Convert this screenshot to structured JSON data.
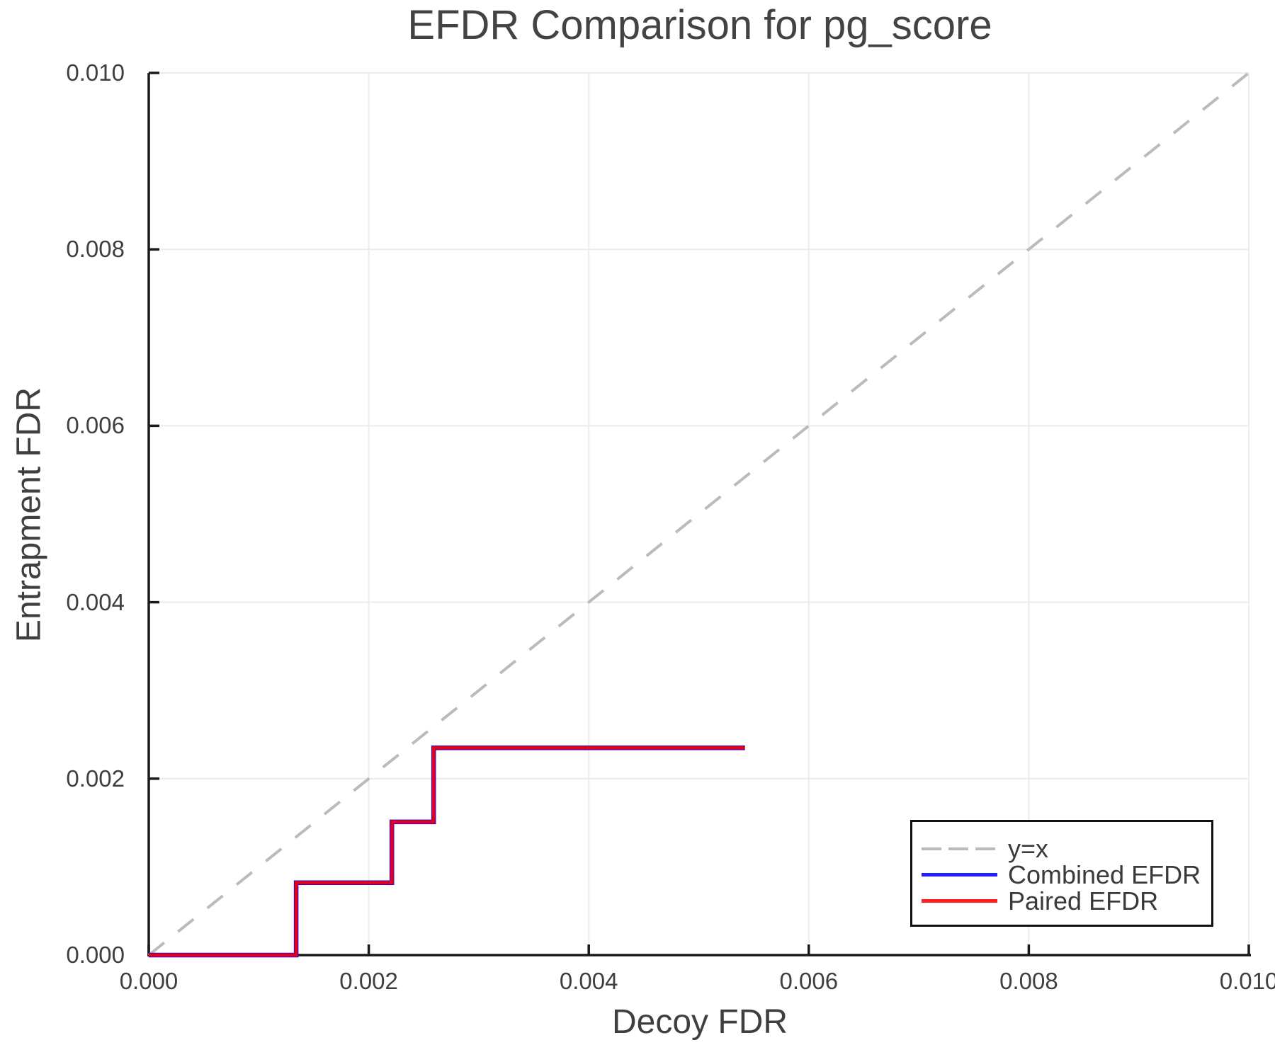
{
  "title": "EFDR Comparison for pg_score",
  "axes": {
    "x": {
      "label": "Decoy FDR",
      "tick_labels": [
        "0.000",
        "0.002",
        "0.004",
        "0.006",
        "0.008",
        "0.010"
      ]
    },
    "y": {
      "label": "Entrapment FDR",
      "tick_labels": [
        "0.000",
        "0.002",
        "0.004",
        "0.006",
        "0.008",
        "0.010"
      ]
    }
  },
  "legend": {
    "entries": [
      {
        "label": "y=x",
        "color": "#bbbbbb",
        "style": "dashed"
      },
      {
        "label": "Combined EFDR",
        "color": "#0000ff",
        "style": "solid"
      },
      {
        "label": "Paired EFDR",
        "color": "#ff0000",
        "style": "solid"
      }
    ]
  },
  "colors": {
    "grid": "#ececec",
    "spine": "#1a1a1a",
    "diagonal": "#bbbbbb",
    "combined": "#0000ff",
    "paired": "#ff0000"
  },
  "chart_data": {
    "type": "line",
    "title": "EFDR Comparison for pg_score",
    "xlabel": "Decoy FDR",
    "ylabel": "Entrapment FDR",
    "xlim": [
      0,
      0.01
    ],
    "ylim": [
      0,
      0.01
    ],
    "ticks": [
      0,
      0.002,
      0.004,
      0.006,
      0.008,
      0.01
    ],
    "grid": true,
    "legend_position": "lower right",
    "series": [
      {
        "name": "y=x",
        "line_style": "dashed",
        "color": "#bbbbbb",
        "points": [
          [
            0,
            0
          ],
          [
            0.01,
            0.01
          ]
        ]
      },
      {
        "name": "Combined EFDR",
        "line_style": "solid",
        "color": "#0000ff",
        "points": [
          [
            0,
            0
          ],
          [
            0.00134,
            0
          ],
          [
            0.00134,
            0.00082
          ],
          [
            0.00221,
            0.00082
          ],
          [
            0.00221,
            0.00151
          ],
          [
            0.00259,
            0.00151
          ],
          [
            0.00259,
            0.00235
          ],
          [
            0.00542,
            0.00235
          ]
        ]
      },
      {
        "name": "Paired EFDR",
        "line_style": "solid",
        "color": "#ff0000",
        "points": [
          [
            0,
            0
          ],
          [
            0.00134,
            0
          ],
          [
            0.00134,
            0.00082
          ],
          [
            0.00221,
            0.00082
          ],
          [
            0.00221,
            0.00151
          ],
          [
            0.00259,
            0.00151
          ],
          [
            0.00259,
            0.00235
          ],
          [
            0.00542,
            0.00235
          ]
        ]
      }
    ]
  }
}
